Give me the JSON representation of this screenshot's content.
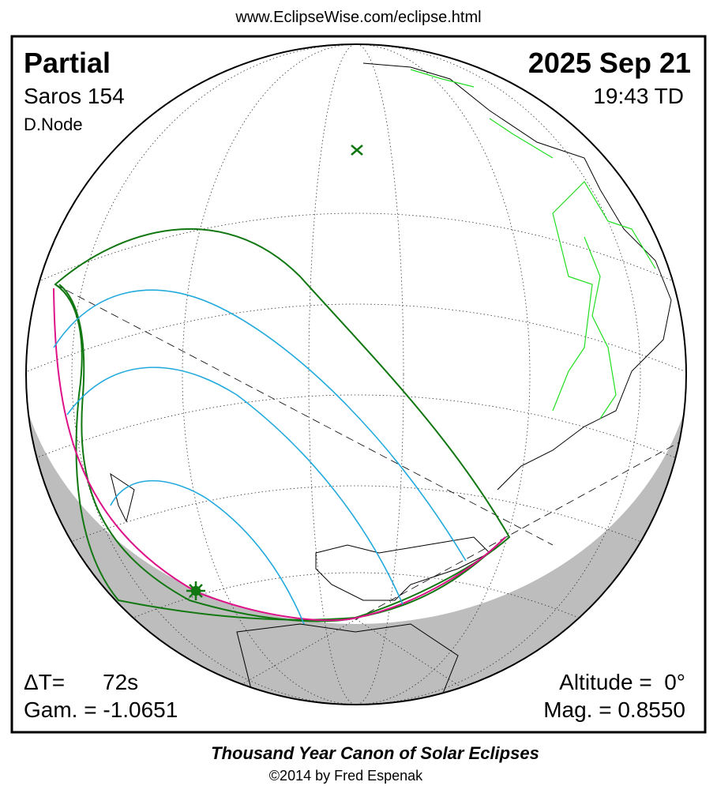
{
  "header": {
    "url": "www.EclipseWise.com/eclipse.html"
  },
  "eclipse": {
    "type": "Partial",
    "date": "2025 Sep 21",
    "saros": "Saros 154",
    "time": "19:43 TD",
    "node": "D.Node"
  },
  "stats": {
    "delta_t_label": "ΔT=",
    "delta_t": "72s",
    "gamma": "Gam. = -1.0651",
    "altitude": "Altitude =  0°",
    "magnitude": "Mag. = 0.8550"
  },
  "footer": {
    "title": "Thousand Year Canon of Solar Eclipses",
    "copyright": "©2014 by Fred Espenak"
  }
}
